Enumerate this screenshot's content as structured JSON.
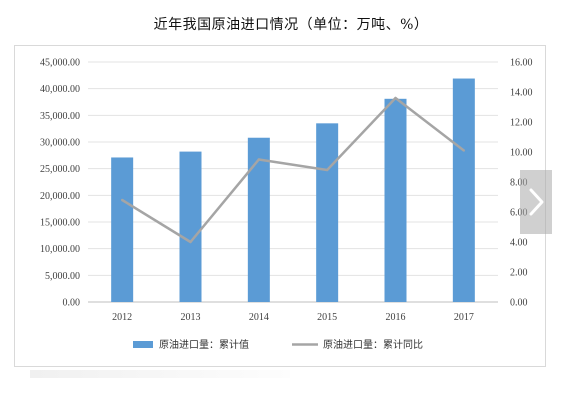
{
  "chart_data": {
    "type": "bar+line",
    "title": "近年我国原油进口情况（单位：万吨、%）",
    "categories": [
      "2012",
      "2013",
      "2014",
      "2015",
      "2016",
      "2017"
    ],
    "series": [
      {
        "name": "原油进口量：累计值",
        "type": "bar",
        "axis": "left",
        "color": "#5b9bd5",
        "values": [
          27100,
          28200,
          30800,
          33500,
          38100,
          41900
        ]
      },
      {
        "name": "原油进口量：累计同比",
        "type": "line",
        "axis": "right",
        "color": "#a5a5a5",
        "values": [
          6.8,
          4.0,
          9.5,
          8.8,
          13.6,
          10.1
        ]
      }
    ],
    "y_left": {
      "min": 0,
      "max": 45000,
      "ticks": [
        "0.00",
        "5,000.00",
        "10,000.00",
        "15,000.00",
        "20,000.00",
        "25,000.00",
        "30,000.00",
        "35,000.00",
        "40,000.00",
        "45,000.00"
      ]
    },
    "y_right": {
      "min": 0,
      "max": 16,
      "ticks": [
        "0.00",
        "2.00",
        "4.00",
        "6.00",
        "8.00",
        "10.00",
        "12.00",
        "14.00",
        "16.00"
      ]
    },
    "grid": true,
    "legend_position": "bottom"
  },
  "overlay": {
    "next_icon": "chevron-right-icon"
  }
}
